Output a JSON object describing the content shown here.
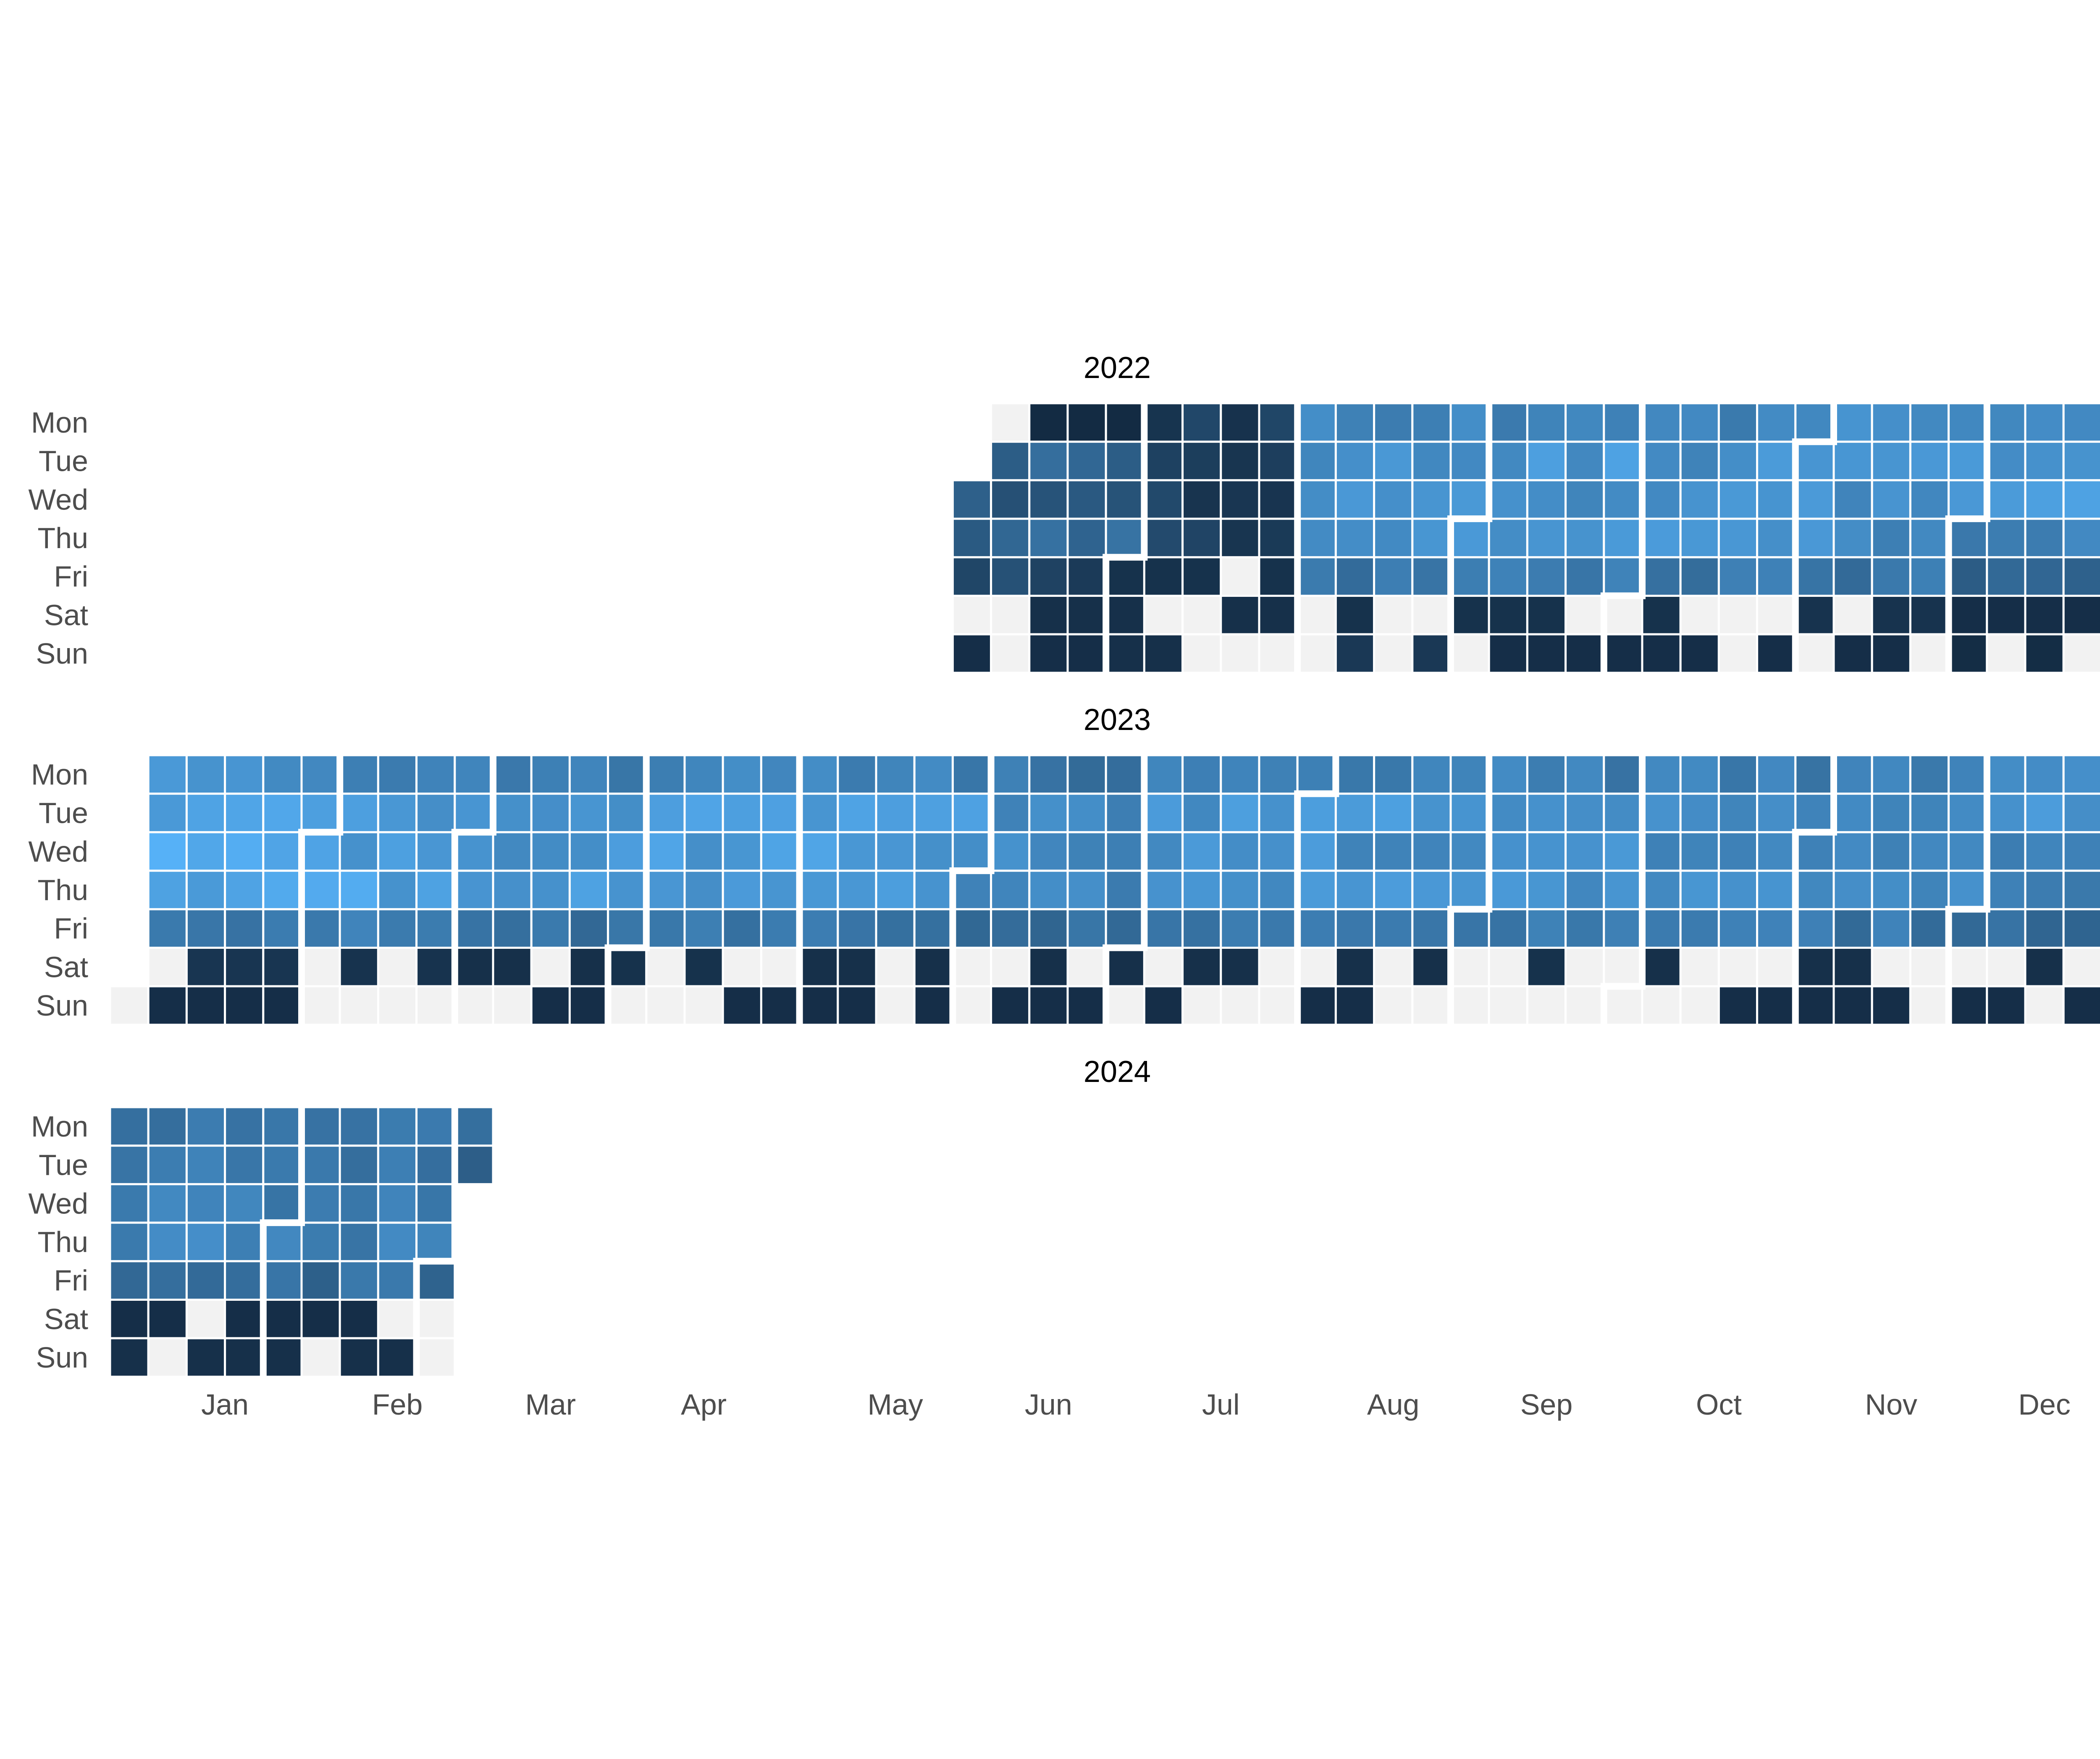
{
  "chart_data": {
    "type": "heatmap",
    "title": "",
    "layout": "calendar",
    "years": [
      "2022",
      "2023",
      "2024"
    ],
    "weekdays": [
      "Mon",
      "Tue",
      "Wed",
      "Thu",
      "Fri",
      "Sat",
      "Sun"
    ],
    "months": [
      "Jan",
      "Feb",
      "Mar",
      "Apr",
      "May",
      "Jun",
      "Jul",
      "Aug",
      "Sep",
      "Oct",
      "Nov",
      "Dec"
    ],
    "date_range": [
      "2022-06-01",
      "2024-03-05"
    ],
    "value_range": [
      0,
      8
    ],
    "color_scale": {
      "low": "#132b43",
      "high": "#56b1f7",
      "missing": "#f2f2f2"
    },
    "legend": "none",
    "grid": false,
    "weekly_levels": {
      "2022-06": [
        0,
        3.5,
        2.5,
        3.5,
        1.5,
        0.3,
        0.2
      ],
      "2022-07": [
        1.0,
        1.2,
        1.0,
        1.2,
        0.4,
        0.3,
        0.3
      ],
      "2022-08": [
        5.4,
        6.2,
        6.5,
        6.4,
        4.6,
        0.4,
        0.8
      ],
      "2022-09": [
        5.3,
        6.3,
        6.1,
        6.2,
        4.5,
        0.4,
        0.2
      ],
      "2022-10": [
        5.2,
        6.0,
        6.1,
        6.0,
        4.5,
        0.4,
        0.2
      ],
      "2022-11": [
        5.6,
        6.3,
        6.0,
        5.8,
        4.3,
        0.5,
        0.2
      ],
      "2022-12": [
        5.6,
        6.4,
        6.5,
        5.4,
        3.6,
        0.2,
        0.1
      ],
      "2023-01": [
        5.8,
        7.2,
        7.4,
        7.3,
        4.5,
        0.6,
        0.2
      ],
      "2023-02": [
        5.3,
        6.7,
        6.8,
        6.9,
        4.6,
        0.5,
        0.2
      ],
      "2023-03": [
        5.0,
        6.2,
        6.2,
        6.3,
        4.4,
        0.3,
        0.2
      ],
      "2023-04": [
        5.2,
        6.5,
        6.6,
        6.5,
        4.4,
        0.4,
        0.2
      ],
      "2023-05": [
        5.1,
        6.6,
        6.5,
        6.4,
        4.3,
        0.3,
        0.2
      ],
      "2023-06": [
        4.4,
        5.4,
        5.5,
        5.2,
        4.2,
        0.3,
        0.2
      ],
      "2023-07": [
        4.9,
        6.3,
        6.2,
        5.8,
        4.3,
        0.3,
        0.2
      ],
      "2023-08": [
        5.0,
        6.3,
        6.0,
        6.2,
        4.4,
        0.3,
        0.2
      ],
      "2023-09": [
        5.0,
        5.8,
        5.9,
        5.9,
        4.6,
        0.4,
        0.2
      ],
      "2023-10": [
        4.9,
        5.7,
        5.6,
        5.6,
        4.6,
        0.3,
        0.2
      ],
      "2023-11": [
        4.9,
        6.0,
        5.8,
        5.6,
        4.5,
        0.3,
        0.2
      ],
      "2023-12": [
        5.2,
        6.0,
        5.7,
        5.0,
        4.1,
        0.3,
        0.2
      ],
      "2024-01": [
        4.3,
        4.6,
        4.8,
        5.3,
        4.0,
        0.2,
        0.3
      ],
      "2024-02": [
        4.3,
        4.7,
        4.8,
        4.9,
        3.9,
        0.2,
        0.3
      ],
      "2024-03": [
        4.2,
        3.2,
        4.8,
        5.3,
        3.7,
        0.2,
        0.3
      ]
    }
  }
}
